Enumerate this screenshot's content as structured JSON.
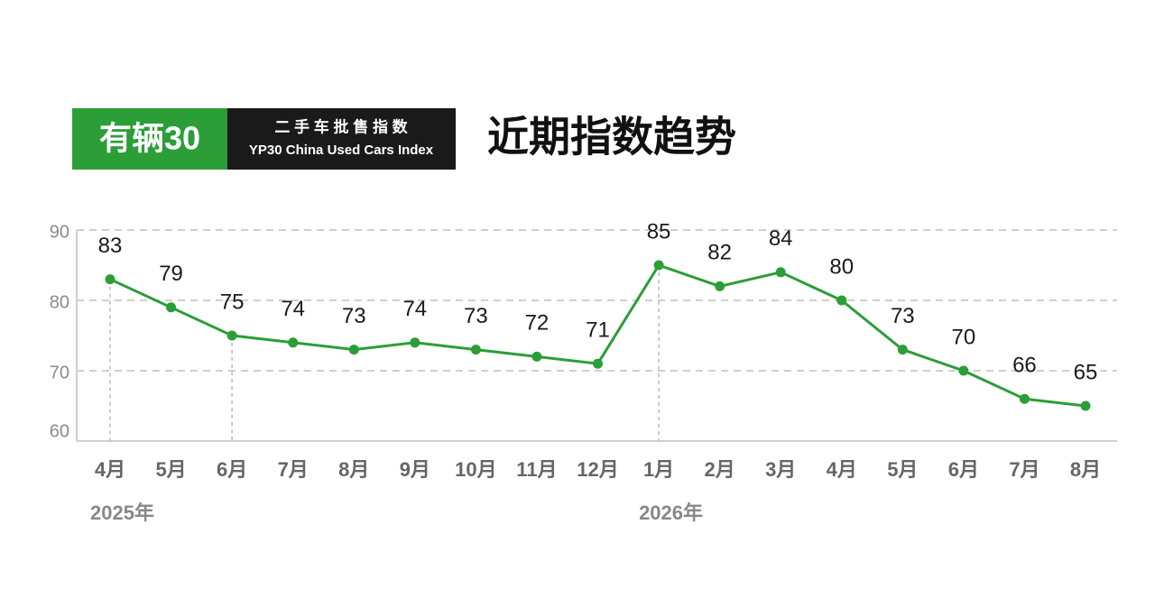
{
  "chart_data": {
    "type": "line",
    "badge": "有辆30",
    "subtitle_cn": "二 手 车 批 售 指 数",
    "subtitle_en": "YP30 China Used Cars Index",
    "title": "近期指数趋势",
    "categories": [
      "4月",
      "5月",
      "6月",
      "7月",
      "8月",
      "9月",
      "10月",
      "11月",
      "12月",
      "1月",
      "2月",
      "3月",
      "4月",
      "5月",
      "6月",
      "7月",
      "8月"
    ],
    "x_groups": [
      "2025年",
      null,
      null,
      null,
      null,
      null,
      null,
      null,
      null,
      "2026年",
      null,
      null,
      null,
      null,
      null,
      null,
      null
    ],
    "values": [
      83,
      79,
      75,
      74,
      73,
      74,
      73,
      72,
      71,
      85,
      82,
      84,
      80,
      73,
      70,
      66,
      65
    ],
    "color": "#2b9e37",
    "ylim": [
      60,
      90
    ],
    "yticks": [
      60,
      70,
      80,
      90
    ],
    "grid": true
  }
}
